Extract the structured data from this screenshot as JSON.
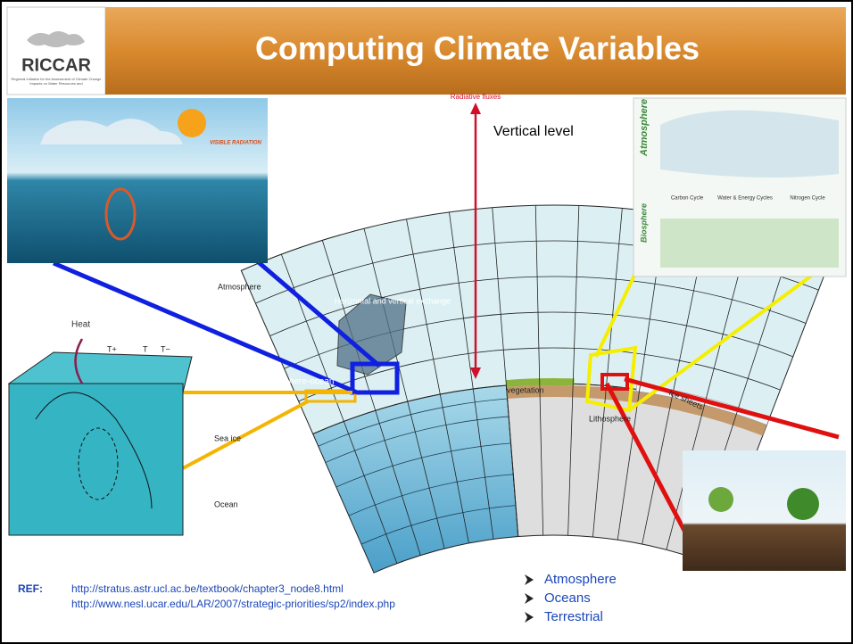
{
  "header": {
    "title": "Computing Climate Variables",
    "logo": "RICCAR",
    "logo_caption": "Regional Initiative for the Assessment of Climate Change Impacts on Water Resources and"
  },
  "diagram": {
    "radiative_fluxes": "Radiative fluxes",
    "vertical_level": "Vertical level",
    "atmosphere": "Atmosphere",
    "exchange": "Horizontal and vertical exchange",
    "atmosphere_ocean": "Atmosphere-ocean",
    "sea_ice": "Sea ice",
    "ocean": "Ocean",
    "vegetation": "vegetation",
    "lithosphere": "Lithosphere",
    "ice_sheets": "Ice sheets",
    "heat": "Heat",
    "t_plus": "T+",
    "t": "T",
    "t_minus": "T−"
  },
  "insets": {
    "ocean_processes": {
      "label": "VISIBLE RADIATION"
    },
    "biosphere": {
      "atmosphere": "Atmosphere",
      "biosphere": "Biosphere",
      "carbon": "Carbon Cycle",
      "water": "Water & Energy Cycles",
      "nitrogen": "Nitrogen Cycle"
    }
  },
  "references": {
    "label": "REF:",
    "urls": [
      "http://stratus.astr.ucl.ac.be/textbook/chapter3_node8.html",
      "http://www.nesl.ucar.edu/LAR/2007/strategic-priorities/sp2/index.php"
    ]
  },
  "bullets": [
    "Atmosphere",
    "Oceans",
    "Terrestrial"
  ]
}
